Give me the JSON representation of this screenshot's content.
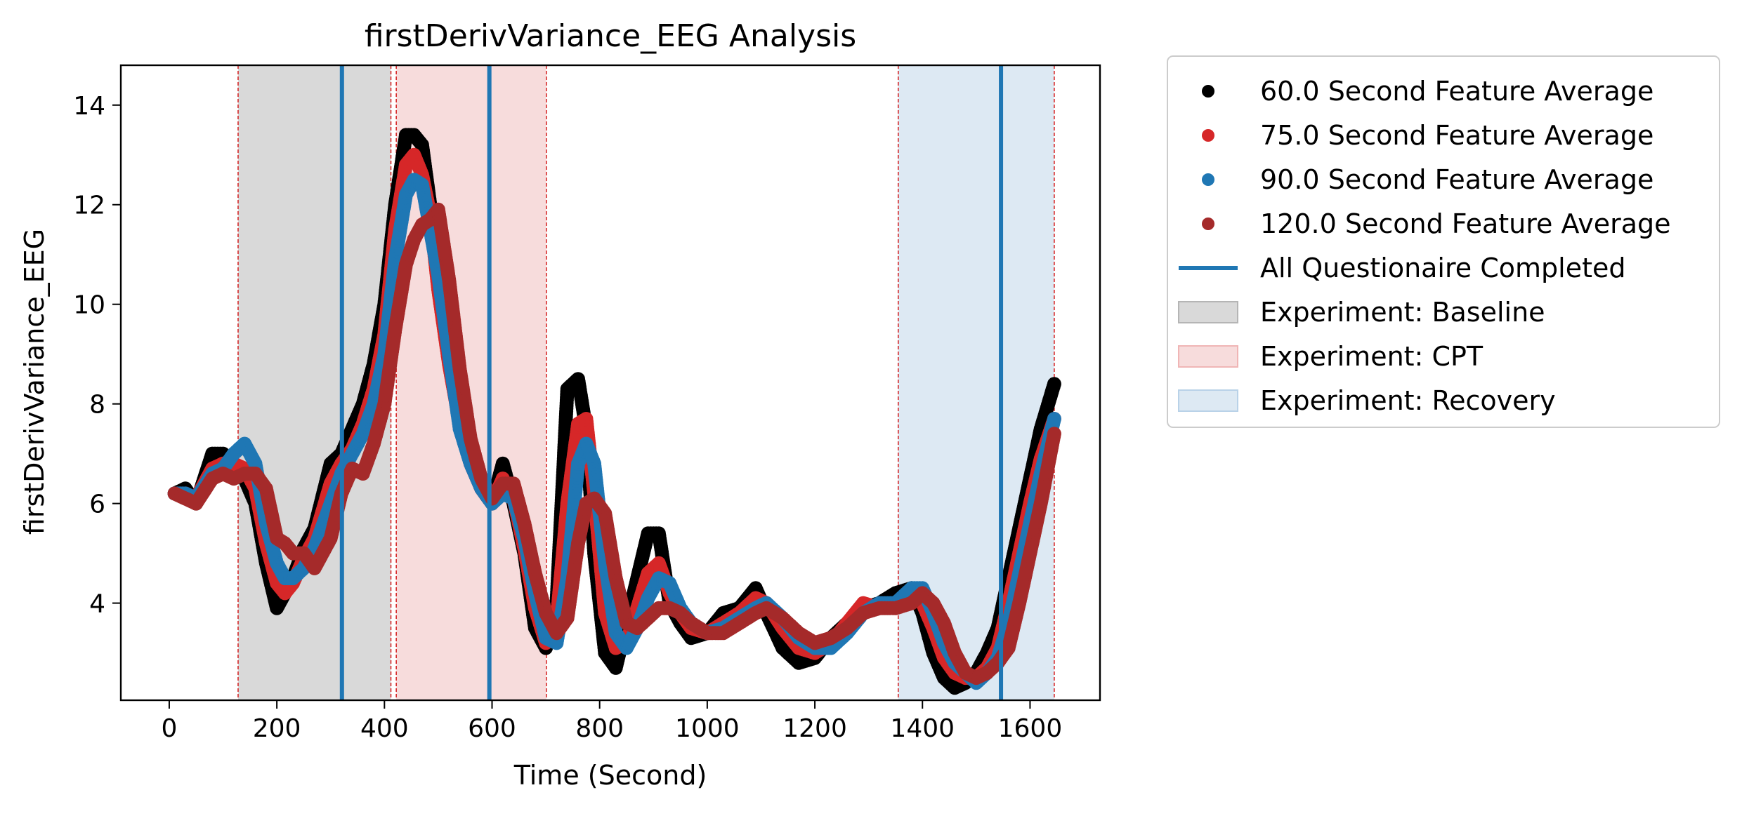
{
  "chart_data": {
    "type": "scatter",
    "title": "firstDerivVariance_EEG Analysis",
    "xlabel": "Time (Second)",
    "ylabel": "firstDerivVariance_EEG",
    "xlim": [
      -90,
      1730
    ],
    "ylim": [
      2.05,
      14.8
    ],
    "xticks": [
      0,
      200,
      400,
      600,
      800,
      1000,
      1200,
      1400,
      1600
    ],
    "yticks": [
      4,
      6,
      8,
      10,
      12,
      14
    ],
    "grid": false,
    "legend_position": "outside-right",
    "spans": [
      {
        "name": "Experiment: Baseline",
        "start": 128,
        "end": 412,
        "color": "#d9d9d9"
      },
      {
        "name": "Experiment: CPT",
        "start": 422,
        "end": 701,
        "color": "#f7dcdc"
      },
      {
        "name": "Experiment: Recovery",
        "start": 1355,
        "end": 1645,
        "color": "#dde9f3"
      }
    ],
    "span_edge_color": "#d62728",
    "vlines": {
      "name": "All Questionaire Completed",
      "x": [
        321,
        595,
        1546
      ],
      "color": "#1f77b4"
    },
    "series": [
      {
        "name": "60.0 Second Feature Average",
        "color": "#000000",
        "x": [
          10,
          30,
          50,
          80,
          100,
          120,
          140,
          160,
          180,
          200,
          215,
          230,
          250,
          270,
          300,
          320,
          340,
          360,
          380,
          400,
          420,
          440,
          455,
          470,
          485,
          500,
          520,
          540,
          560,
          580,
          600,
          620,
          640,
          660,
          680,
          700,
          720,
          740,
          760,
          775,
          790,
          810,
          830,
          850,
          870,
          890,
          910,
          930,
          950,
          970,
          1000,
          1030,
          1060,
          1090,
          1110,
          1140,
          1170,
          1200,
          1230,
          1260,
          1290,
          1320,
          1350,
          1380,
          1400,
          1420,
          1440,
          1460,
          1480,
          1500,
          1520,
          1540,
          1560,
          1580,
          1600,
          1620,
          1645
        ],
        "values": [
          6.2,
          6.3,
          6.0,
          7.0,
          7.0,
          6.7,
          6.5,
          6.0,
          4.8,
          3.9,
          4.2,
          4.5,
          5.1,
          5.5,
          6.8,
          7.0,
          7.5,
          8.0,
          8.8,
          10.0,
          12.0,
          13.4,
          13.4,
          13.2,
          12.0,
          10.5,
          9.0,
          7.8,
          6.9,
          6.3,
          6.0,
          6.8,
          6.0,
          5.0,
          3.5,
          3.1,
          4.0,
          8.3,
          8.5,
          7.5,
          5.0,
          3.0,
          2.7,
          3.6,
          4.5,
          5.4,
          5.4,
          4.0,
          3.6,
          3.3,
          3.4,
          3.8,
          3.9,
          4.3,
          3.8,
          3.1,
          2.8,
          2.9,
          3.3,
          3.6,
          3.9,
          4.0,
          4.2,
          4.3,
          3.8,
          3.0,
          2.5,
          2.3,
          2.4,
          2.6,
          3.0,
          3.5,
          4.5,
          5.5,
          6.5,
          7.5,
          8.4
        ]
      },
      {
        "name": "75.0 Second Feature Average",
        "color": "#d62728",
        "x": [
          10,
          30,
          50,
          80,
          100,
          120,
          140,
          160,
          180,
          200,
          215,
          230,
          250,
          270,
          300,
          320,
          340,
          360,
          380,
          400,
          420,
          440,
          455,
          470,
          485,
          500,
          520,
          540,
          560,
          580,
          600,
          620,
          640,
          660,
          680,
          700,
          720,
          740,
          760,
          775,
          790,
          810,
          830,
          850,
          870,
          890,
          910,
          930,
          950,
          970,
          1000,
          1030,
          1060,
          1090,
          1110,
          1140,
          1170,
          1200,
          1230,
          1260,
          1290,
          1320,
          1350,
          1380,
          1400,
          1420,
          1440,
          1460,
          1480,
          1500,
          1520,
          1540,
          1560,
          1580,
          1600,
          1620,
          1645
        ],
        "values": [
          6.2,
          6.2,
          6.1,
          6.7,
          6.8,
          6.8,
          6.7,
          6.3,
          5.2,
          4.4,
          4.2,
          4.4,
          4.9,
          5.3,
          6.4,
          6.8,
          7.1,
          7.6,
          8.3,
          9.4,
          11.5,
          12.8,
          13.0,
          12.6,
          11.8,
          10.3,
          8.8,
          7.6,
          6.8,
          6.3,
          6.0,
          6.5,
          6.1,
          5.1,
          3.9,
          3.2,
          3.6,
          6.0,
          7.6,
          7.7,
          6.2,
          3.8,
          3.1,
          3.2,
          3.9,
          4.6,
          4.8,
          4.2,
          3.8,
          3.5,
          3.4,
          3.6,
          3.8,
          4.1,
          4.0,
          3.5,
          3.1,
          3.0,
          3.2,
          3.6,
          4.0,
          3.9,
          4.0,
          4.2,
          4.0,
          3.5,
          2.9,
          2.6,
          2.5,
          2.5,
          2.7,
          3.1,
          4.0,
          5.0,
          6.0,
          6.9,
          7.7
        ]
      },
      {
        "name": "90.0 Second Feature Average",
        "color": "#1f77b4",
        "x": [
          10,
          30,
          50,
          80,
          100,
          120,
          140,
          160,
          180,
          200,
          215,
          230,
          250,
          270,
          300,
          320,
          340,
          360,
          380,
          400,
          420,
          440,
          455,
          470,
          485,
          500,
          520,
          540,
          560,
          580,
          600,
          620,
          640,
          660,
          680,
          700,
          720,
          740,
          760,
          775,
          790,
          810,
          830,
          850,
          870,
          890,
          910,
          930,
          950,
          970,
          1000,
          1030,
          1060,
          1090,
          1110,
          1140,
          1170,
          1200,
          1230,
          1260,
          1290,
          1320,
          1350,
          1380,
          1400,
          1420,
          1440,
          1460,
          1480,
          1500,
          1520,
          1540,
          1560,
          1580,
          1600,
          1620,
          1645
        ],
        "values": [
          6.2,
          6.2,
          6.1,
          6.6,
          6.7,
          7.0,
          7.2,
          6.8,
          5.6,
          4.8,
          4.5,
          4.5,
          4.7,
          5.1,
          6.0,
          6.6,
          7.0,
          7.4,
          8.0,
          9.0,
          10.9,
          12.2,
          12.5,
          12.4,
          11.5,
          10.6,
          9.0,
          7.5,
          6.8,
          6.3,
          6.0,
          6.2,
          6.1,
          5.3,
          4.2,
          3.3,
          3.2,
          4.5,
          6.8,
          7.2,
          6.8,
          4.8,
          3.4,
          3.1,
          3.5,
          4.1,
          4.5,
          4.4,
          3.9,
          3.6,
          3.4,
          3.5,
          3.7,
          3.9,
          4.0,
          3.7,
          3.3,
          3.1,
          3.1,
          3.4,
          3.8,
          4.0,
          4.0,
          4.3,
          4.3,
          3.8,
          3.2,
          2.8,
          2.6,
          2.4,
          2.6,
          2.9,
          3.6,
          4.6,
          5.6,
          6.6,
          7.7
        ]
      },
      {
        "name": "120.0 Second Feature Average",
        "color": "#a52a2a",
        "x": [
          10,
          30,
          50,
          80,
          100,
          120,
          140,
          160,
          180,
          200,
          215,
          230,
          250,
          270,
          300,
          320,
          340,
          360,
          380,
          400,
          420,
          440,
          455,
          470,
          485,
          500,
          520,
          540,
          560,
          580,
          600,
          620,
          640,
          660,
          680,
          700,
          720,
          740,
          760,
          775,
          790,
          810,
          830,
          850,
          870,
          890,
          910,
          930,
          950,
          970,
          1000,
          1030,
          1060,
          1090,
          1110,
          1140,
          1170,
          1200,
          1230,
          1260,
          1290,
          1320,
          1350,
          1380,
          1400,
          1420,
          1440,
          1460,
          1480,
          1500,
          1520,
          1540,
          1560,
          1580,
          1600,
          1620,
          1645
        ],
        "values": [
          6.2,
          6.1,
          6.0,
          6.5,
          6.6,
          6.5,
          6.6,
          6.6,
          6.3,
          5.3,
          5.2,
          5.0,
          5.0,
          4.7,
          5.3,
          6.2,
          6.7,
          6.6,
          7.2,
          8.0,
          9.5,
          10.8,
          11.3,
          11.6,
          11.7,
          11.9,
          10.5,
          8.7,
          7.3,
          6.5,
          6.1,
          6.4,
          6.4,
          5.6,
          4.6,
          3.8,
          3.4,
          3.7,
          5.2,
          6.0,
          6.1,
          5.8,
          4.5,
          3.6,
          3.5,
          3.7,
          3.9,
          3.9,
          3.8,
          3.6,
          3.4,
          3.4,
          3.6,
          3.8,
          3.9,
          3.7,
          3.4,
          3.2,
          3.3,
          3.5,
          3.8,
          3.9,
          3.9,
          4.0,
          4.2,
          4.0,
          3.6,
          3.0,
          2.6,
          2.5,
          2.6,
          2.8,
          3.1,
          4.0,
          5.0,
          6.0,
          7.4
        ]
      }
    ]
  },
  "legend": {
    "items": [
      {
        "kind": "marker",
        "label": "60.0 Second Feature Average",
        "color": "#000000"
      },
      {
        "kind": "marker",
        "label": "75.0 Second Feature Average",
        "color": "#d62728"
      },
      {
        "kind": "marker",
        "label": "90.0 Second Feature Average",
        "color": "#1f77b4"
      },
      {
        "kind": "marker",
        "label": "120.0 Second Feature Average",
        "color": "#a52a2a"
      },
      {
        "kind": "line",
        "label": "All Questionaire Completed",
        "color": "#1f77b4"
      },
      {
        "kind": "patch",
        "label": "Experiment: Baseline",
        "color": "#d9d9d9"
      },
      {
        "kind": "patch",
        "label": "Experiment: CPT",
        "color": "#f7dcdc"
      },
      {
        "kind": "patch",
        "label": "Experiment: Recovery",
        "color": "#dde9f3"
      }
    ]
  }
}
